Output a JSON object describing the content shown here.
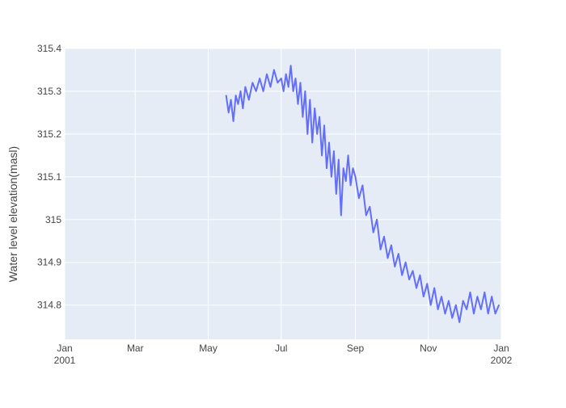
{
  "chart_data": {
    "type": "line",
    "title": "",
    "xlabel": "",
    "ylabel": "Water level elevation(masl)",
    "x_type": "date",
    "xlim": [
      "2001-01-01",
      "2002-01-01"
    ],
    "ylim": [
      314.72,
      315.4
    ],
    "x_ticks": [
      {
        "date": "2001-01-01",
        "label": "Jan",
        "sublabel": "2001"
      },
      {
        "date": "2001-03-01",
        "label": "Mar",
        "sublabel": ""
      },
      {
        "date": "2001-05-01",
        "label": "May",
        "sublabel": ""
      },
      {
        "date": "2001-07-01",
        "label": "Jul",
        "sublabel": ""
      },
      {
        "date": "2001-09-01",
        "label": "Sep",
        "sublabel": ""
      },
      {
        "date": "2001-11-01",
        "label": "Nov",
        "sublabel": ""
      },
      {
        "date": "2002-01-01",
        "label": "Jan",
        "sublabel": "2002"
      }
    ],
    "y_ticks": [
      {
        "value": 314.8,
        "label": "314.8"
      },
      {
        "value": 314.9,
        "label": "314.9"
      },
      {
        "value": 315.0,
        "label": "315"
      },
      {
        "value": 315.1,
        "label": "315.1"
      },
      {
        "value": 315.2,
        "label": "315.2"
      },
      {
        "value": 315.3,
        "label": "315.3"
      },
      {
        "value": 315.4,
        "label": "315.4"
      }
    ],
    "grid": true,
    "legend": "none",
    "colors": {
      "plot_bg": "#e5ecf6",
      "grid": "#ffffff",
      "line": "#636efa"
    },
    "series": [
      {
        "x": [
          "2001-05-16",
          "2001-05-18",
          "2001-05-20",
          "2001-05-22",
          "2001-05-24",
          "2001-05-26",
          "2001-05-28",
          "2001-05-30",
          "2001-06-01",
          "2001-06-04",
          "2001-06-07",
          "2001-06-10",
          "2001-06-13",
          "2001-06-16",
          "2001-06-19",
          "2001-06-22",
          "2001-06-25",
          "2001-06-28",
          "2001-07-01",
          "2001-07-03",
          "2001-07-05",
          "2001-07-07",
          "2001-07-09",
          "2001-07-11",
          "2001-07-13",
          "2001-07-15",
          "2001-07-17",
          "2001-07-19",
          "2001-07-21",
          "2001-07-23",
          "2001-07-25",
          "2001-07-27",
          "2001-07-29",
          "2001-07-31",
          "2001-08-02",
          "2001-08-04",
          "2001-08-06",
          "2001-08-08",
          "2001-08-10",
          "2001-08-12",
          "2001-08-14",
          "2001-08-16",
          "2001-08-18",
          "2001-08-20",
          "2001-08-22",
          "2001-08-24",
          "2001-08-26",
          "2001-08-28",
          "2001-08-30",
          "2001-09-01",
          "2001-09-04",
          "2001-09-07",
          "2001-09-10",
          "2001-09-13",
          "2001-09-16",
          "2001-09-19",
          "2001-09-22",
          "2001-09-25",
          "2001-09-28",
          "2001-10-01",
          "2001-10-04",
          "2001-10-07",
          "2001-10-10",
          "2001-10-13",
          "2001-10-16",
          "2001-10-19",
          "2001-10-22",
          "2001-10-25",
          "2001-10-28",
          "2001-10-31",
          "2001-11-03",
          "2001-11-06",
          "2001-11-09",
          "2001-11-12",
          "2001-11-15",
          "2001-11-18",
          "2001-11-21",
          "2001-11-24",
          "2001-11-27",
          "2001-11-30",
          "2001-12-03",
          "2001-12-06",
          "2001-12-09",
          "2001-12-12",
          "2001-12-15",
          "2001-12-18",
          "2001-12-21",
          "2001-12-24",
          "2001-12-27",
          "2001-12-30"
        ],
        "y": [
          315.29,
          315.25,
          315.28,
          315.23,
          315.29,
          315.27,
          315.3,
          315.26,
          315.31,
          315.28,
          315.32,
          315.3,
          315.33,
          315.3,
          315.34,
          315.31,
          315.35,
          315.32,
          315.33,
          315.3,
          315.34,
          315.31,
          315.36,
          315.3,
          315.33,
          315.27,
          315.32,
          315.24,
          315.3,
          315.2,
          315.28,
          315.18,
          315.26,
          315.2,
          315.24,
          315.15,
          315.22,
          315.12,
          315.18,
          315.1,
          315.16,
          315.06,
          315.14,
          315.01,
          315.12,
          315.09,
          315.15,
          315.08,
          315.12,
          315.1,
          315.05,
          315.08,
          315.01,
          315.03,
          314.97,
          315.0,
          314.93,
          314.96,
          314.91,
          314.94,
          314.89,
          314.92,
          314.87,
          314.9,
          314.86,
          314.88,
          314.84,
          314.87,
          314.82,
          314.85,
          314.8,
          314.84,
          314.79,
          314.82,
          314.78,
          314.81,
          314.77,
          314.8,
          314.76,
          314.81,
          314.79,
          314.83,
          314.78,
          314.82,
          314.79,
          314.83,
          314.78,
          314.82,
          314.78,
          314.8
        ]
      }
    ]
  }
}
